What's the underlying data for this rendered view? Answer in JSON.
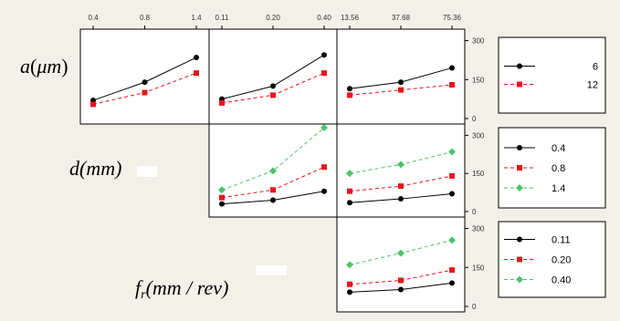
{
  "chart_data": {
    "type": "line",
    "kind": "interaction-plot-matrix",
    "factors": {
      "a": {
        "levels": [
          "6",
          "12"
        ]
      },
      "d": {
        "levels": [
          "0.4",
          "0.8",
          "1.4"
        ]
      },
      "fr": {
        "levels": [
          "0.11",
          "0.20",
          "0.40"
        ]
      },
      "v": {
        "levels": [
          "13.56",
          "37.68",
          "75.36"
        ]
      }
    },
    "row_labels": {
      "a": {
        "base": "a",
        "paren_open": "(",
        "mu": "μ",
        "unit_rest": "m",
        "paren_close": ")"
      },
      "d": {
        "base": "d",
        "unit": "(mm)"
      },
      "fr": {
        "base": "f",
        "sub": "r",
        "unit": "(mm / rev)"
      }
    },
    "top_tick_labels": [
      "0.4",
      "0.8",
      "1.4",
      "0.11",
      "0.20",
      "0.40",
      "13.56",
      "37.68",
      "75.36"
    ],
    "ylim": [
      0,
      330
    ],
    "right_tick_labels": [
      "300",
      "150",
      "0"
    ],
    "series_colors": [
      "#000000",
      "#e8141c",
      "#4cc36a"
    ],
    "panels": [
      {
        "row": 0,
        "col": 0,
        "series": [
          {
            "level": "6",
            "values": [
              70,
              140,
              235
            ]
          },
          {
            "level": "12",
            "values": [
              55,
              100,
              175
            ]
          }
        ]
      },
      {
        "row": 0,
        "col": 1,
        "series": [
          {
            "level": "6",
            "values": [
              75,
              125,
              245
            ]
          },
          {
            "level": "12",
            "values": [
              60,
              90,
              175
            ]
          }
        ]
      },
      {
        "row": 0,
        "col": 2,
        "series": [
          {
            "level": "6",
            "values": [
              115,
              140,
              195
            ]
          },
          {
            "level": "12",
            "values": [
              90,
              110,
              130
            ]
          }
        ]
      },
      {
        "row": 1,
        "col": 1,
        "series": [
          {
            "level": "0.4",
            "values": [
              30,
              45,
              80
            ]
          },
          {
            "level": "0.8",
            "values": [
              55,
              85,
              175
            ]
          },
          {
            "level": "1.4",
            "values": [
              85,
              160,
              330
            ]
          }
        ]
      },
      {
        "row": 1,
        "col": 2,
        "series": [
          {
            "level": "0.4",
            "values": [
              35,
              50,
              70
            ]
          },
          {
            "level": "0.8",
            "values": [
              80,
              100,
              140
            ]
          },
          {
            "level": "1.4",
            "values": [
              150,
              185,
              235
            ]
          }
        ]
      },
      {
        "row": 2,
        "col": 2,
        "series": [
          {
            "level": "0.11",
            "values": [
              55,
              65,
              90
            ]
          },
          {
            "level": "0.20",
            "values": [
              85,
              100,
              140
            ]
          },
          {
            "level": "0.40",
            "values": [
              160,
              205,
              255
            ]
          }
        ]
      }
    ],
    "legends": [
      {
        "row": 0,
        "entries": [
          "6",
          "12"
        ]
      },
      {
        "row": 1,
        "entries": [
          "0.4",
          "0.8",
          "1.4"
        ]
      },
      {
        "row": 2,
        "entries": [
          "0.11",
          "0.20",
          "0.40"
        ]
      }
    ]
  }
}
